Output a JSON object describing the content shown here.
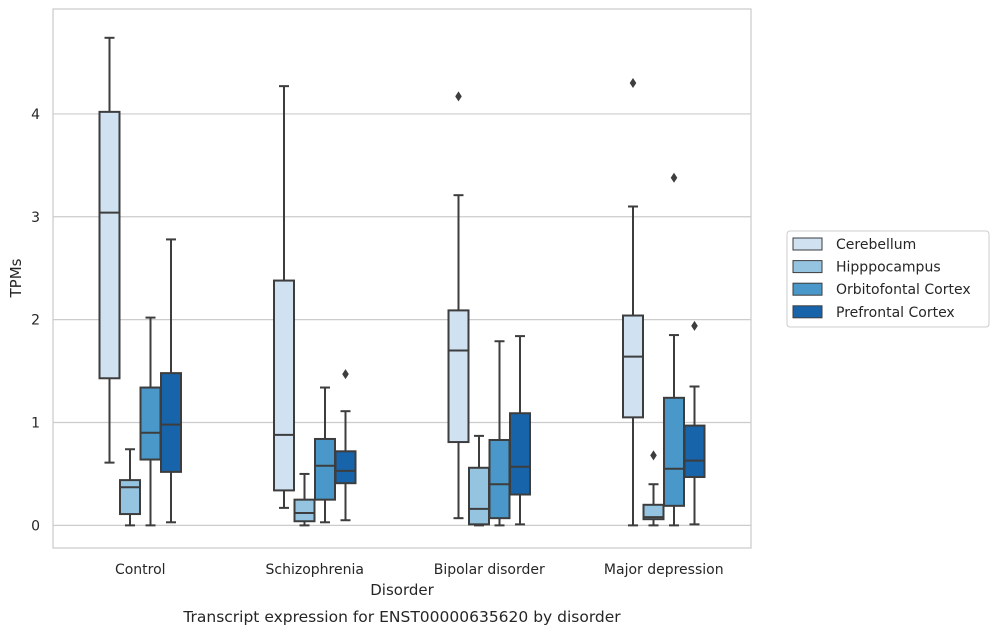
{
  "chart_data": {
    "type": "boxplot",
    "title": "Transcript expression for ENST00000635620 by disorder",
    "xlabel": "Disorder",
    "ylabel": "TPMs",
    "ylim": [
      -0.22,
      5.02
    ],
    "yticks": [
      0,
      1,
      2,
      3,
      4
    ],
    "grid": "horizontal",
    "legend_position": "right",
    "categories": [
      "Control",
      "Schizophrenia",
      "Bipolar disorder",
      "Major depression"
    ],
    "series": [
      {
        "name": "Cerebellum",
        "color": "#d0e1f2",
        "boxes": [
          {
            "whislo": 0.61,
            "q1": 1.43,
            "med": 3.04,
            "q3": 4.02,
            "whishi": 4.74,
            "fliers": []
          },
          {
            "whislo": 0.17,
            "q1": 0.34,
            "med": 0.88,
            "q3": 2.38,
            "whishi": 4.27,
            "fliers": []
          },
          {
            "whislo": 0.07,
            "q1": 0.81,
            "med": 1.7,
            "q3": 2.09,
            "whishi": 3.21,
            "fliers": [
              4.17
            ]
          },
          {
            "whislo": 0.0,
            "q1": 1.05,
            "med": 1.64,
            "q3": 2.04,
            "whishi": 3.1,
            "fliers": [
              4.3
            ]
          }
        ]
      },
      {
        "name": "Hipppocampus",
        "color": "#94c4df",
        "boxes": [
          {
            "whislo": 0.0,
            "q1": 0.11,
            "med": 0.37,
            "q3": 0.44,
            "whishi": 0.74,
            "fliers": []
          },
          {
            "whislo": 0.0,
            "q1": 0.04,
            "med": 0.12,
            "q3": 0.25,
            "whishi": 0.5,
            "fliers": []
          },
          {
            "whislo": 0.0,
            "q1": 0.01,
            "med": 0.16,
            "q3": 0.56,
            "whishi": 0.87,
            "fliers": []
          },
          {
            "whislo": 0.0,
            "q1": 0.06,
            "med": 0.08,
            "q3": 0.2,
            "whishi": 0.4,
            "fliers": [
              0.68
            ]
          }
        ]
      },
      {
        "name": "Orbitofontal Cortex",
        "color": "#4a98c9",
        "boxes": [
          {
            "whislo": 0.0,
            "q1": 0.64,
            "med": 0.9,
            "q3": 1.34,
            "whishi": 2.02,
            "fliers": []
          },
          {
            "whislo": 0.03,
            "q1": 0.25,
            "med": 0.58,
            "q3": 0.84,
            "whishi": 1.34,
            "fliers": []
          },
          {
            "whislo": 0.0,
            "q1": 0.07,
            "med": 0.4,
            "q3": 0.83,
            "whishi": 1.79,
            "fliers": []
          },
          {
            "whislo": 0.0,
            "q1": 0.19,
            "med": 0.55,
            "q3": 1.24,
            "whishi": 1.85,
            "fliers": [
              3.38
            ]
          }
        ]
      },
      {
        "name": "Prefrontal Cortex",
        "color": "#1764ab",
        "boxes": [
          {
            "whislo": 0.03,
            "q1": 0.52,
            "med": 0.98,
            "q3": 1.48,
            "whishi": 2.78,
            "fliers": []
          },
          {
            "whislo": 0.05,
            "q1": 0.41,
            "med": 0.53,
            "q3": 0.72,
            "whishi": 1.11,
            "fliers": [
              1.47
            ]
          },
          {
            "whislo": 0.01,
            "q1": 0.3,
            "med": 0.57,
            "q3": 1.09,
            "whishi": 1.84,
            "fliers": []
          },
          {
            "whislo": 0.01,
            "q1": 0.47,
            "med": 0.63,
            "q3": 0.97,
            "whishi": 1.35,
            "fliers": [
              1.94
            ]
          }
        ]
      }
    ]
  }
}
